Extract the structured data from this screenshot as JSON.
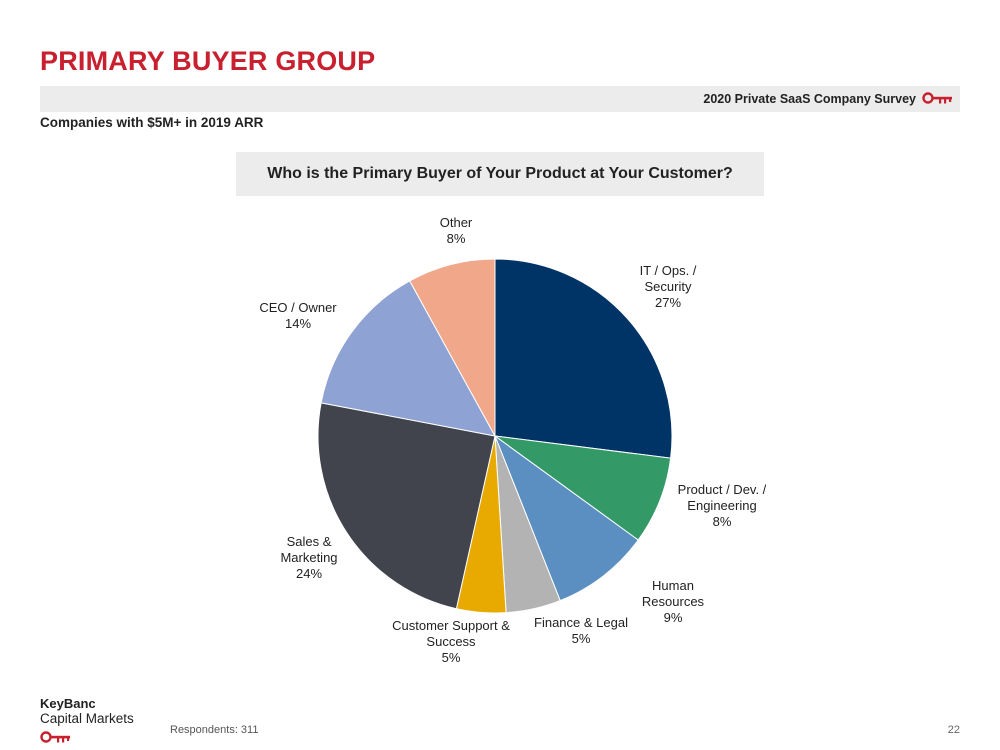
{
  "page": {
    "title": "PRIMARY BUYER GROUP",
    "survey_label": "2020 Private SaaS Company Survey",
    "subtitle": "Companies with $5M+ in 2019 ARR",
    "respondents": "Respondents: 311",
    "page_number": "22"
  },
  "brand": {
    "name": "KeyBanc",
    "sub": "Capital Markets",
    "logo_icon": "key-icon",
    "color": "#c8202f"
  },
  "chart_data": {
    "type": "pie",
    "title": "Who is the Primary Buyer of Your Product at Your Customer?",
    "slices": [
      {
        "label_lines": [
          "IT / Ops. /",
          "Security",
          "27%"
        ],
        "value": 27,
        "color": "#003366"
      },
      {
        "label_lines": [
          "Product / Dev. /",
          "Engineering",
          "8%"
        ],
        "value": 8,
        "color": "#339966"
      },
      {
        "label_lines": [
          "Human",
          "Resources",
          "9%"
        ],
        "value": 9,
        "color": "#5b8fc2"
      },
      {
        "label_lines": [
          "Finance & Legal",
          "5%"
        ],
        "value": 5,
        "color": "#b3b3b3"
      },
      {
        "label_lines": [
          "Customer Support &",
          "Success",
          "5%"
        ],
        "value": 4.5,
        "color": "#e8aa00"
      },
      {
        "label_lines": [
          "Sales &",
          "Marketing",
          "24%"
        ],
        "value": 24.5,
        "color": "#41444d"
      },
      {
        "label_lines": [
          "CEO / Owner",
          "14%"
        ],
        "value": 14,
        "color": "#8fa2d4"
      },
      {
        "label_lines": [
          "Other",
          "8%"
        ],
        "value": 8,
        "color": "#f0a78a"
      }
    ],
    "start_angle_deg": 0,
    "direction": "clockwise",
    "legend": "none"
  }
}
